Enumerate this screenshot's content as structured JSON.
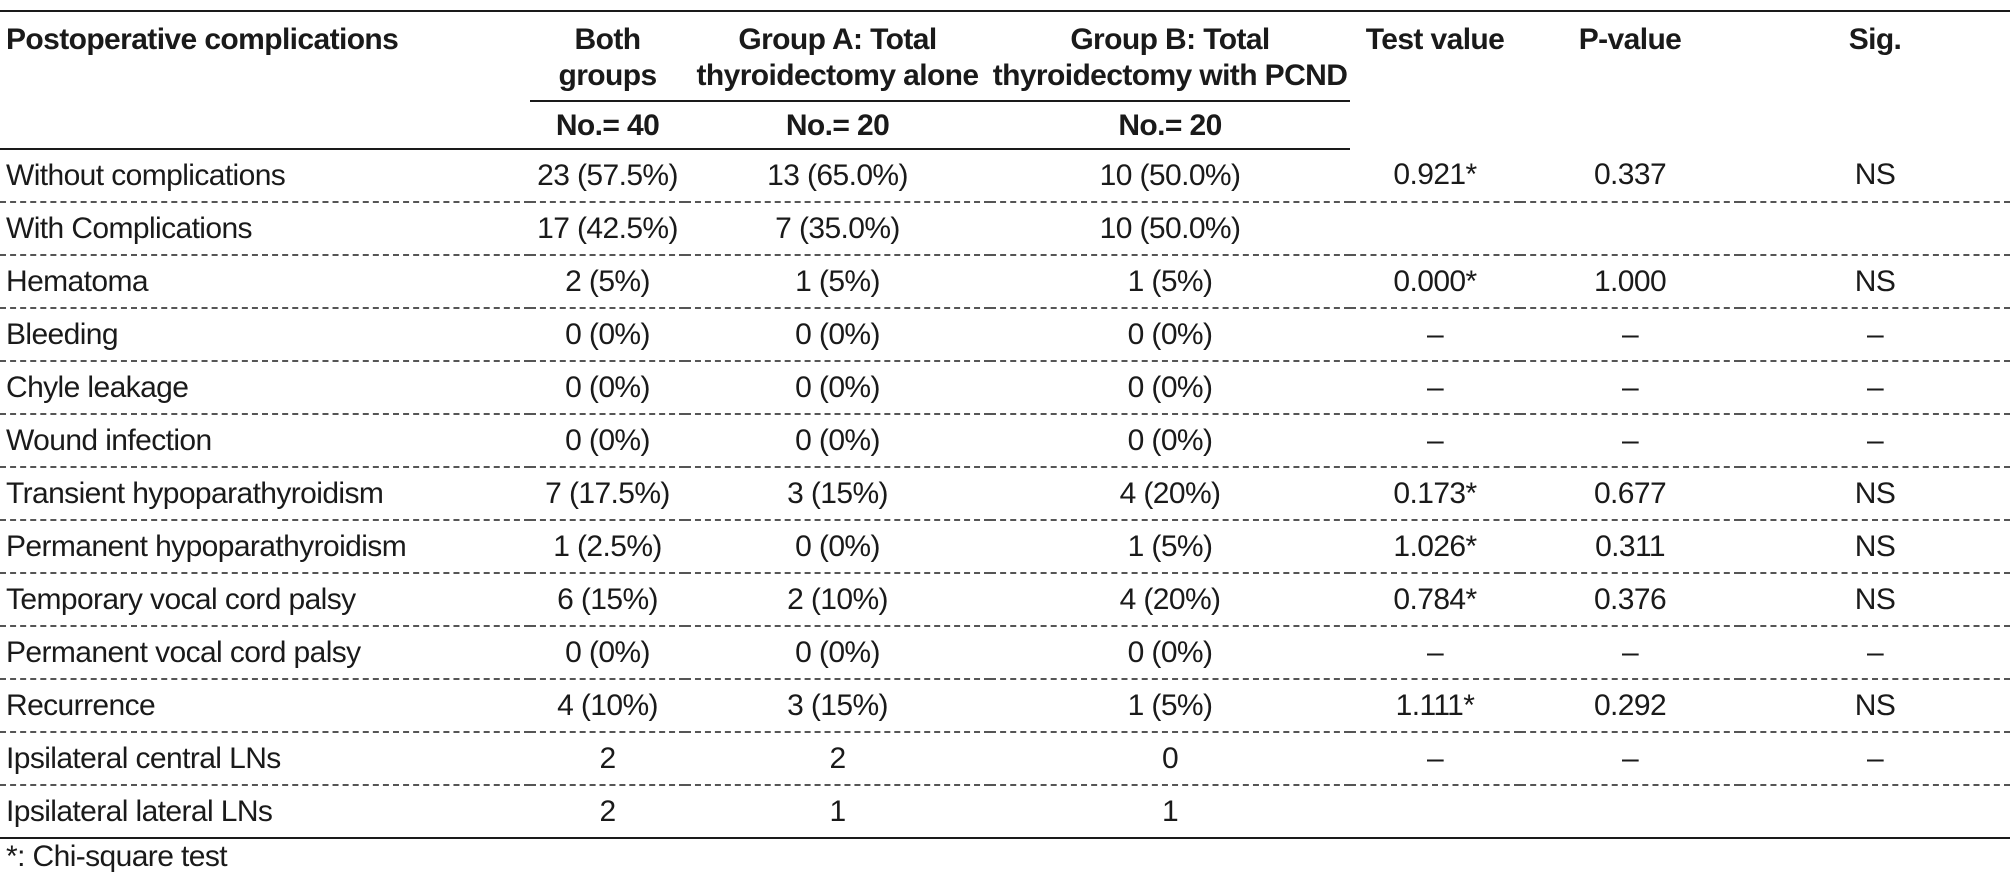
{
  "table": {
    "headers": {
      "complication": "Postoperative complications",
      "both": "Both groups",
      "groupA": "Group A: Total thyroidectomy alone",
      "groupB": "Group B: Total thyroidectomy with PCND",
      "test": "Test value",
      "p": "P-value",
      "sig": "Sig.",
      "n_both": "No.= 40",
      "n_a": "No.= 20",
      "n_b": "No.= 20"
    },
    "rows": [
      {
        "label": "Without complications",
        "both": "23 (57.5%)",
        "a": "13 (65.0%)",
        "b": "10 (50.0%)",
        "test": "0.921*",
        "p": "0.337",
        "sig": "NS"
      },
      {
        "label": "With Complications",
        "both": "17 (42.5%)",
        "a": "7 (35.0%)",
        "b": "10 (50.0%)",
        "test": "",
        "p": "",
        "sig": ""
      },
      {
        "label": "Hematoma",
        "both": "2 (5%)",
        "a": "1 (5%)",
        "b": "1 (5%)",
        "test": "0.000*",
        "p": "1.000",
        "sig": "NS"
      },
      {
        "label": "Bleeding",
        "both": "0 (0%)",
        "a": "0 (0%)",
        "b": "0 (0%)",
        "test": "–",
        "p": "–",
        "sig": "–"
      },
      {
        "label": "Chyle leakage",
        "both": "0 (0%)",
        "a": "0 (0%)",
        "b": "0 (0%)",
        "test": "–",
        "p": "–",
        "sig": "–"
      },
      {
        "label": "Wound infection",
        "both": "0 (0%)",
        "a": "0 (0%)",
        "b": "0 (0%)",
        "test": "–",
        "p": "–",
        "sig": "–"
      },
      {
        "label": "Transient hypoparathyroidism",
        "both": "7 (17.5%)",
        "a": "3 (15%)",
        "b": "4 (20%)",
        "test": "0.173*",
        "p": "0.677",
        "sig": "NS"
      },
      {
        "label": "Permanent hypoparathyroidism",
        "both": "1 (2.5%)",
        "a": "0 (0%)",
        "b": "1 (5%)",
        "test": "1.026*",
        "p": "0.311",
        "sig": "NS"
      },
      {
        "label": "Temporary vocal cord palsy",
        "both": "6 (15%)",
        "a": "2 (10%)",
        "b": "4 (20%)",
        "test": "0.784*",
        "p": "0.376",
        "sig": "NS"
      },
      {
        "label": "Permanent vocal cord palsy",
        "both": "0 (0%)",
        "a": "0 (0%)",
        "b": "0 (0%)",
        "test": "–",
        "p": "–",
        "sig": "–"
      },
      {
        "label": "Recurrence",
        "both": "4 (10%)",
        "a": "3 (15%)",
        "b": "1 (5%)",
        "test": "1.111*",
        "p": "0.292",
        "sig": "NS"
      },
      {
        "label": "Ipsilateral central LNs",
        "both": "2",
        "a": "2",
        "b": "0",
        "test": "–",
        "p": "–",
        "sig": "–"
      },
      {
        "label": "Ipsilateral lateral LNs",
        "both": "2",
        "a": "1",
        "b": "1",
        "test": "",
        "p": "",
        "sig": ""
      }
    ],
    "footnote": "*: Chi-square test"
  }
}
